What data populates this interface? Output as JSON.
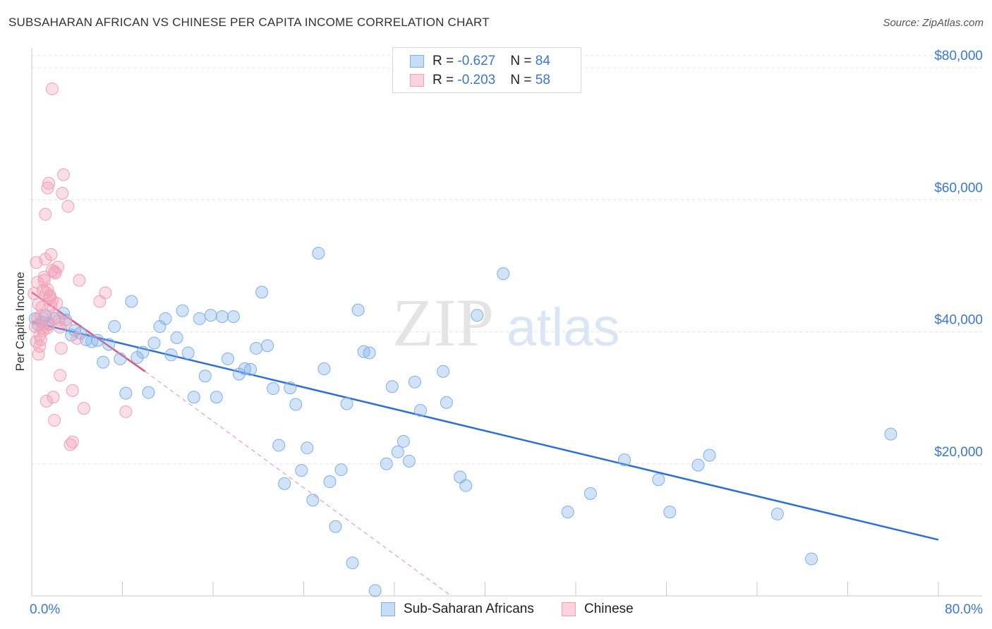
{
  "title": "SUBSAHARAN AFRICAN VS CHINESE PER CAPITA INCOME CORRELATION CHART",
  "source": "Source: ZipAtlas.com",
  "watermark": {
    "zip": "ZIP",
    "atlas": "atlas"
  },
  "legend": {
    "rows": [
      {
        "r_label": "R = ",
        "r_value": "-0.627",
        "n_label": "N = ",
        "n_value": "84",
        "color": "#7eb0e8"
      },
      {
        "r_label": "R = ",
        "r_value": "-0.203",
        "n_label": "N = ",
        "n_value": "58",
        "color": "#f2a0b8"
      }
    ]
  },
  "bottom_legend": [
    {
      "label": "Sub-Saharan Africans",
      "color": "#7eb0e8"
    },
    {
      "label": "Chinese",
      "color": "#f2a0b8"
    }
  ],
  "chart_data": {
    "type": "scatter",
    "title": "SUBSAHARAN AFRICAN VS CHINESE PER CAPITA INCOME CORRELATION CHART",
    "xlabel": "",
    "ylabel": "Per Capita Income",
    "xlim": [
      0,
      80
    ],
    "ylim": [
      0,
      83000
    ],
    "x_tick_labels": [
      "0.0%",
      "80.0%"
    ],
    "y_ticks": [
      20000,
      40000,
      60000,
      80000
    ],
    "y_tick_labels": [
      "$20,000",
      "$40,000",
      "$60,000",
      "$80,000"
    ],
    "grid": true,
    "series": [
      {
        "name": "Sub-Saharan Africans",
        "color": "#7eb0e8",
        "line_color": "#2d6fd4",
        "trend": {
          "x": [
            0,
            80
          ],
          "y": [
            41500,
            8500
          ]
        },
        "points": [
          [
            0.3,
            42000
          ],
          [
            0.6,
            41000
          ],
          [
            0.9,
            41500
          ],
          [
            1.2,
            42500
          ],
          [
            1.5,
            41200
          ],
          [
            2.0,
            42000
          ],
          [
            2.8,
            42800
          ],
          [
            3.0,
            41800
          ],
          [
            3.5,
            39500
          ],
          [
            3.8,
            40200
          ],
          [
            4.3,
            39800
          ],
          [
            4.8,
            38800
          ],
          [
            5.3,
            38500
          ],
          [
            5.8,
            38700
          ],
          [
            6.3,
            35400
          ],
          [
            6.8,
            38100
          ],
          [
            7.3,
            40800
          ],
          [
            7.8,
            35900
          ],
          [
            8.3,
            30700
          ],
          [
            8.8,
            44600
          ],
          [
            9.3,
            36100
          ],
          [
            9.8,
            36900
          ],
          [
            10.3,
            30800
          ],
          [
            10.8,
            38300
          ],
          [
            11.3,
            40800
          ],
          [
            11.8,
            42000
          ],
          [
            12.3,
            36500
          ],
          [
            12.8,
            39100
          ],
          [
            13.3,
            43200
          ],
          [
            13.8,
            36800
          ],
          [
            14.3,
            30100
          ],
          [
            14.8,
            42000
          ],
          [
            15.3,
            33300
          ],
          [
            15.8,
            42500
          ],
          [
            16.3,
            30100
          ],
          [
            16.8,
            42300
          ],
          [
            17.3,
            35900
          ],
          [
            17.8,
            42300
          ],
          [
            18.3,
            33600
          ],
          [
            18.8,
            34400
          ],
          [
            19.3,
            34300
          ],
          [
            19.8,
            37500
          ],
          [
            20.3,
            46000
          ],
          [
            20.8,
            37900
          ],
          [
            21.3,
            31400
          ],
          [
            21.8,
            22800
          ],
          [
            22.3,
            17000
          ],
          [
            22.8,
            31500
          ],
          [
            23.3,
            29000
          ],
          [
            23.8,
            19000
          ],
          [
            24.3,
            22400
          ],
          [
            24.8,
            14500
          ],
          [
            25.3,
            51900
          ],
          [
            25.8,
            34400
          ],
          [
            26.3,
            17300
          ],
          [
            26.8,
            10500
          ],
          [
            27.3,
            19100
          ],
          [
            27.8,
            29100
          ],
          [
            28.3,
            5000
          ],
          [
            28.8,
            43300
          ],
          [
            29.3,
            37000
          ],
          [
            29.8,
            36800
          ],
          [
            30.3,
            800
          ],
          [
            31.3,
            20000
          ],
          [
            31.8,
            31700
          ],
          [
            32.3,
            21800
          ],
          [
            32.8,
            23400
          ],
          [
            33.3,
            20400
          ],
          [
            33.8,
            32400
          ],
          [
            34.3,
            28100
          ],
          [
            36.3,
            34000
          ],
          [
            36.6,
            29300
          ],
          [
            37.8,
            18000
          ],
          [
            38.3,
            16700
          ],
          [
            39.3,
            42500
          ],
          [
            41.6,
            48800
          ],
          [
            47.3,
            12700
          ],
          [
            49.3,
            15500
          ],
          [
            52.3,
            20600
          ],
          [
            55.3,
            17600
          ],
          [
            56.3,
            12700
          ],
          [
            58.8,
            19800
          ],
          [
            59.8,
            21300
          ],
          [
            65.8,
            12400
          ],
          [
            68.8,
            5600
          ],
          [
            75.8,
            24500
          ]
        ]
      },
      {
        "name": "Chinese",
        "color": "#f2a0b8",
        "line_color": "#e0527e",
        "trend": {
          "x": [
            0,
            10
          ],
          "y": [
            46000,
            34000
          ]
        },
        "trend_extension": {
          "x": [
            10,
            37
          ],
          "y": [
            34000,
            0
          ]
        },
        "points": [
          [
            0.2,
            45800
          ],
          [
            0.3,
            40800
          ],
          [
            0.4,
            38500
          ],
          [
            0.5,
            47500
          ],
          [
            0.5,
            41900
          ],
          [
            0.6,
            36600
          ],
          [
            0.6,
            44200
          ],
          [
            0.7,
            39500
          ],
          [
            0.7,
            37800
          ],
          [
            0.8,
            42400
          ],
          [
            0.8,
            38800
          ],
          [
            0.9,
            43700
          ],
          [
            0.9,
            40600
          ],
          [
            1.0,
            46300
          ],
          [
            1.0,
            40200
          ],
          [
            1.1,
            47800
          ],
          [
            1.1,
            48300
          ],
          [
            1.2,
            51000
          ],
          [
            1.2,
            57800
          ],
          [
            1.3,
            45900
          ],
          [
            1.3,
            29500
          ],
          [
            1.4,
            46400
          ],
          [
            1.4,
            61800
          ],
          [
            1.5,
            62500
          ],
          [
            1.5,
            41100
          ],
          [
            1.6,
            45200
          ],
          [
            1.6,
            45500
          ],
          [
            1.7,
            51700
          ],
          [
            1.7,
            43900
          ],
          [
            1.8,
            49300
          ],
          [
            1.8,
            44700
          ],
          [
            1.9,
            42500
          ],
          [
            1.9,
            30100
          ],
          [
            2.0,
            49100
          ],
          [
            2.0,
            26600
          ],
          [
            2.1,
            48900
          ],
          [
            2.2,
            44300
          ],
          [
            2.3,
            49800
          ],
          [
            2.4,
            41800
          ],
          [
            2.5,
            40700
          ],
          [
            2.5,
            33400
          ],
          [
            2.6,
            37500
          ],
          [
            2.7,
            61000
          ],
          [
            2.8,
            63800
          ],
          [
            3.0,
            41400
          ],
          [
            3.2,
            59000
          ],
          [
            3.4,
            22900
          ],
          [
            3.6,
            23300
          ],
          [
            3.6,
            31100
          ],
          [
            4.0,
            39000
          ],
          [
            4.2,
            47800
          ],
          [
            4.6,
            28400
          ],
          [
            6.0,
            44600
          ],
          [
            6.5,
            45900
          ],
          [
            8.3,
            27900
          ],
          [
            1.8,
            76800
          ],
          [
            0.4,
            50500
          ],
          [
            1.4,
            40600
          ]
        ]
      }
    ]
  }
}
